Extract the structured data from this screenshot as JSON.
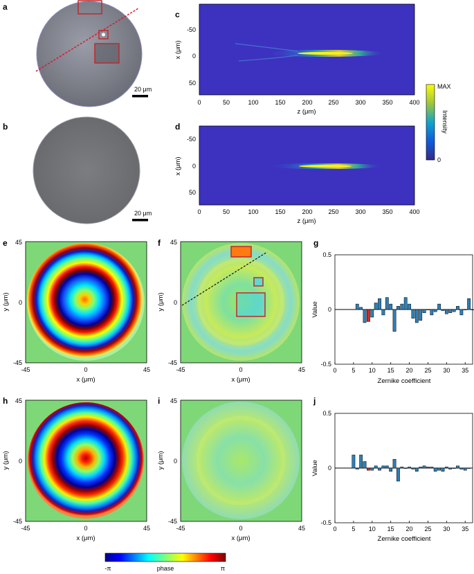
{
  "panel_labels": [
    "a",
    "b",
    "c",
    "d",
    "e",
    "f",
    "g",
    "h",
    "i",
    "j"
  ],
  "scalebar": {
    "label": "20 μm"
  },
  "intensity": {
    "x_label": "z (μm)",
    "y_label": "x (μm)",
    "x_ticks": [
      "0",
      "50",
      "100",
      "150",
      "200",
      "250",
      "300",
      "350",
      "400"
    ],
    "y_ticks": [
      "-50",
      "0",
      "50"
    ],
    "colorbar_label": "Intensity",
    "colorbar_max": "MAX",
    "colorbar_min": "0"
  },
  "phase_maps": {
    "x_label": "x (μm)",
    "y_label": "y (μm)",
    "ticks": [
      "-45",
      "0",
      "45"
    ],
    "colorbar_label": "phase",
    "colorbar_min": "-π",
    "colorbar_max": "π"
  },
  "colors": {
    "bar_fill": "#2f7fb6",
    "highlight_bar": "#d42a2a",
    "roi_box": "#c0282f",
    "background_phase": "#7ed878",
    "colormap_low": "#00008f",
    "colormap_high": "#800000"
  },
  "chart_data": [
    {
      "type": "bar",
      "panel": "g",
      "xlabel": "Zernike coefficient",
      "ylabel": "Value",
      "xlim": [
        0,
        37
      ],
      "ylim": [
        -0.5,
        0.5
      ],
      "x_ticks": [
        "0",
        "5",
        "10",
        "15",
        "20",
        "25",
        "30",
        "35"
      ],
      "y_ticks": [
        "0.5",
        "0",
        "-0.5"
      ],
      "highlight_index": 9,
      "x": [
        6,
        7,
        8,
        9,
        10,
        11,
        12,
        13,
        14,
        15,
        16,
        17,
        18,
        19,
        20,
        21,
        22,
        23,
        24,
        25,
        26,
        27,
        28,
        29,
        30,
        31,
        32,
        33,
        34,
        35,
        36,
        37
      ],
      "values": [
        0.05,
        0.02,
        -0.12,
        -0.11,
        -0.07,
        0.06,
        0.1,
        -0.05,
        0.11,
        0.05,
        -0.2,
        0.03,
        0.05,
        0.11,
        0.05,
        -0.08,
        -0.12,
        -0.1,
        -0.03,
        0.0,
        -0.05,
        -0.02,
        0.05,
        -0.01,
        -0.04,
        -0.03,
        -0.02,
        0.03,
        -0.05,
        0.0,
        0.1,
        0.0
      ]
    },
    {
      "type": "bar",
      "panel": "j",
      "xlabel": "Zernike coefficient",
      "ylabel": "Value",
      "xlim": [
        0,
        37
      ],
      "ylim": [
        -0.5,
        0.5
      ],
      "x_ticks": [
        "0",
        "5",
        "10",
        "15",
        "20",
        "25",
        "30",
        "35"
      ],
      "y_ticks": [
        "0.5",
        "0",
        "-0.5"
      ],
      "highlight_index": 9,
      "x": [
        5,
        6,
        7,
        8,
        9,
        10,
        11,
        12,
        13,
        14,
        15,
        16,
        17,
        18,
        19,
        20,
        21,
        22,
        23,
        24,
        25,
        26,
        27,
        28,
        29,
        30,
        31,
        32,
        33,
        34,
        35,
        36
      ],
      "values": [
        0.12,
        -0.01,
        0.12,
        0.06,
        -0.02,
        -0.02,
        0.02,
        -0.02,
        0.02,
        0.02,
        -0.03,
        0.08,
        -0.12,
        0.01,
        0.0,
        0.01,
        -0.01,
        -0.03,
        0.01,
        0.02,
        0.01,
        0.01,
        -0.03,
        -0.02,
        -0.03,
        0.01,
        -0.01,
        0.0,
        0.02,
        -0.01,
        -0.02,
        0.0
      ]
    }
  ]
}
